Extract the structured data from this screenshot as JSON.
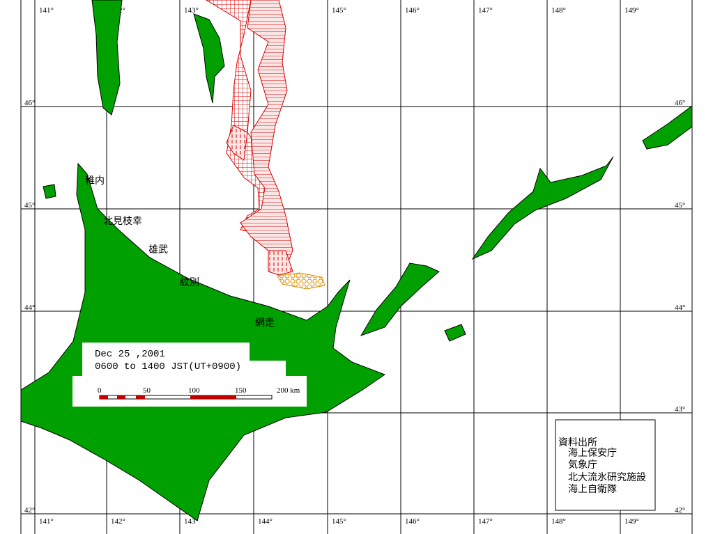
{
  "longitude_labels": [
    "141°",
    "142°",
    "143°",
    "144°",
    "145°",
    "146°",
    "147°",
    "148°",
    "149°"
  ],
  "latitude_labels": [
    "46°",
    "45°",
    "44°",
    "43°",
    "42°"
  ],
  "place_names": [
    "稚内",
    "北見枝幸",
    "雄武",
    "紋別",
    "網走"
  ],
  "observation": {
    "date": "Dec 25 ,2001",
    "time": "0600 to 1400 JST(UT+0900)"
  },
  "scale_labels": [
    "0",
    "50",
    "100",
    "150",
    "200 km"
  ],
  "source": {
    "title": "資料出所",
    "items": [
      "海上保安庁",
      "気象庁",
      "北大流氷研究施設",
      "海上自衛隊"
    ]
  }
}
